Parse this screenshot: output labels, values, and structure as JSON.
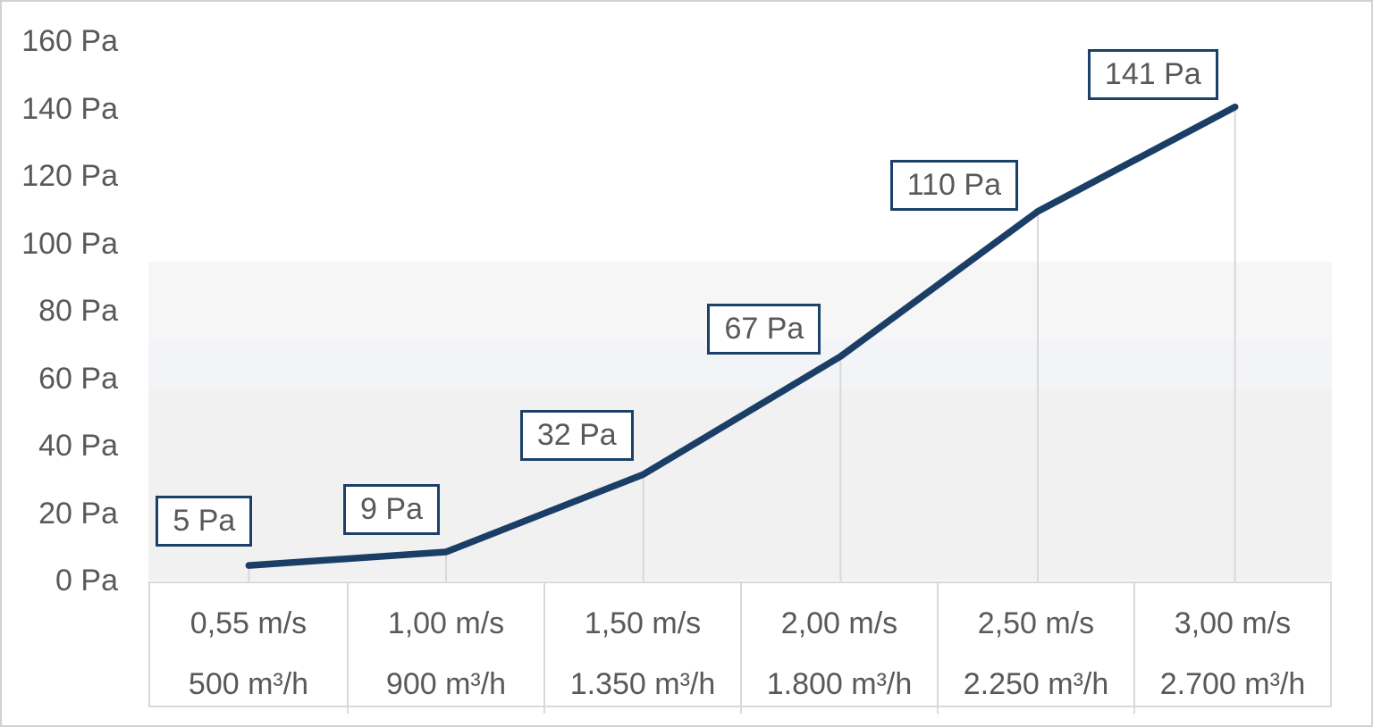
{
  "chart_data": {
    "type": "line",
    "title": "",
    "legend": "none",
    "grid": "off",
    "series": [
      {
        "name": "pressure-curve",
        "values": [
          5,
          9,
          32,
          67,
          110,
          141
        ],
        "data_labels": [
          "5 Pa",
          "9 Pa",
          "32 Pa",
          "67 Pa",
          "110 Pa",
          "141 Pa"
        ],
        "color": "#1b3e66"
      }
    ],
    "categories": [
      {
        "velocity": "0,55 m/s",
        "flow": "500 m³/h"
      },
      {
        "velocity": "1,00 m/s",
        "flow": "900 m³/h"
      },
      {
        "velocity": "1,50 m/s",
        "flow": "1.350 m³/h"
      },
      {
        "velocity": "2,00 m/s",
        "flow": "1.800 m³/h"
      },
      {
        "velocity": "2,50 m/s",
        "flow": "2.250 m³/h"
      },
      {
        "velocity": "3,00 m/s",
        "flow": "2.700 m³/h"
      }
    ],
    "y_axis": {
      "unit": "Pa",
      "ylim": [
        0,
        160
      ],
      "tick_values": [
        160,
        140,
        120,
        100,
        80,
        60,
        40,
        20,
        0
      ],
      "tick_labels": [
        "160 Pa",
        "140 Pa",
        "120 Pa",
        "100 Pa",
        "80 Pa",
        "60 Pa",
        "40 Pa",
        "20 Pa",
        "0 Pa"
      ]
    },
    "colors": {
      "line": "#1b3e66",
      "data_label_border": "#1b4168",
      "data_label_text": "#595959",
      "axis_text": "#595959",
      "dropline": "#d9d9d9",
      "table_border": "#d9d9d9",
      "plot_band": "#f2f2f3"
    }
  }
}
